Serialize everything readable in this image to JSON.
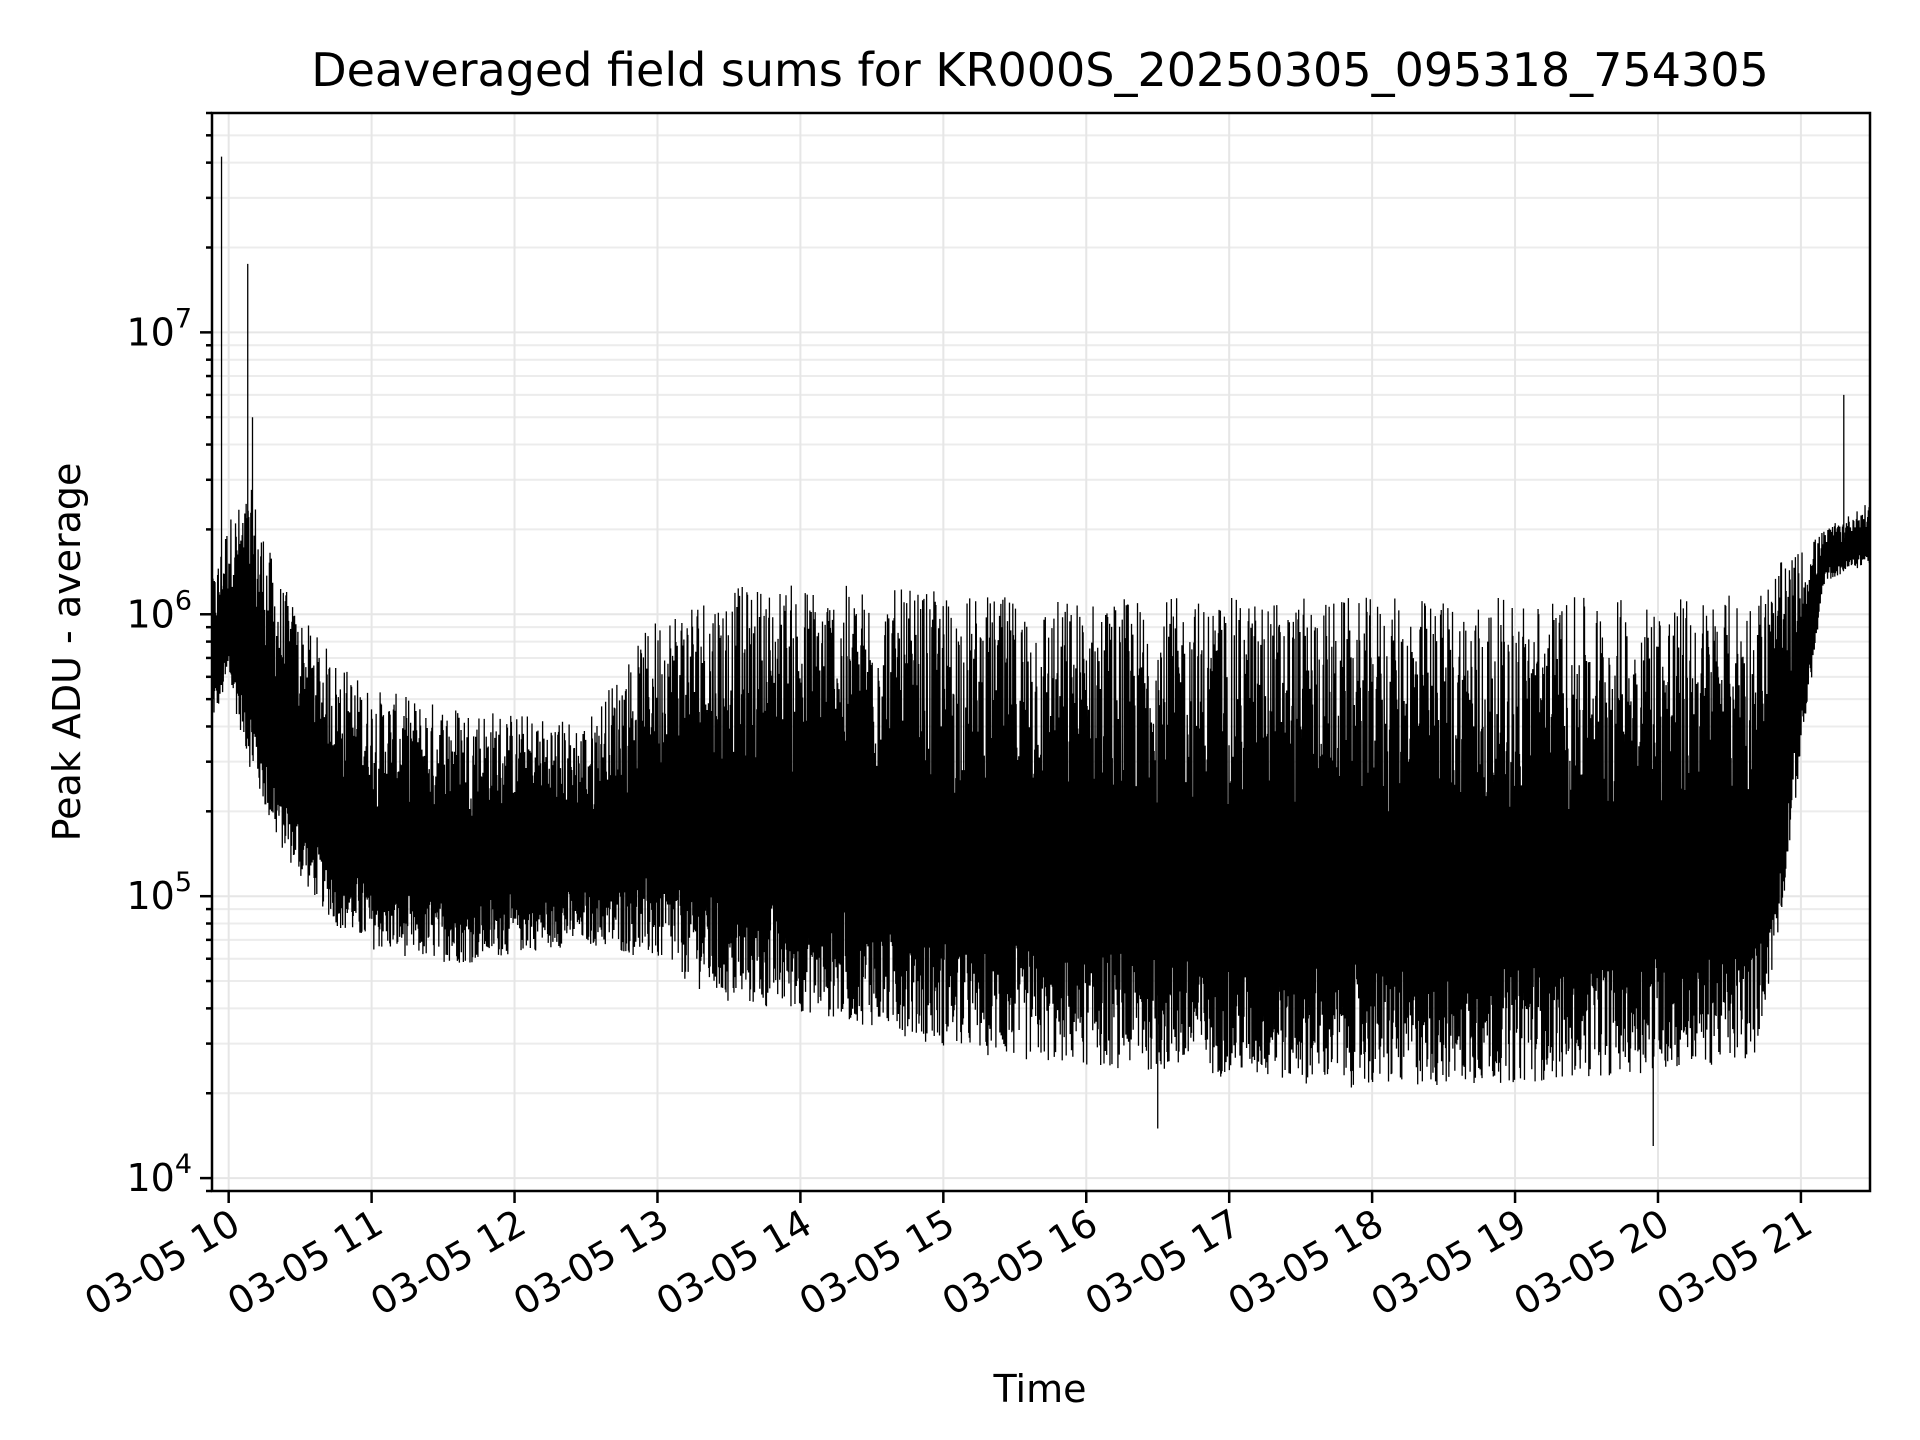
{
  "chart_data": {
    "type": "line",
    "title": "Deaveraged field sums for KR000S_20250305_095318_754305",
    "xlabel": "Time",
    "ylabel": "Peak ADU - average",
    "y_scale": "log",
    "ylim": [
      9000,
      60000000
    ],
    "xlim": [
      "2025-03-05 09:53",
      "2025-03-05 21:29"
    ],
    "grid": true,
    "legend": "none",
    "line_color": "#000000",
    "x_ticks": [
      "03-05 10",
      "03-05 11",
      "03-05 12",
      "03-05 13",
      "03-05 14",
      "03-05 15",
      "03-05 16",
      "03-05 17",
      "03-05 18",
      "03-05 19",
      "03-05 20",
      "03-05 21"
    ],
    "x_tick_times": [
      "2025-03-05 10:00",
      "2025-03-05 11:00",
      "2025-03-05 12:00",
      "2025-03-05 13:00",
      "2025-03-05 14:00",
      "2025-03-05 15:00",
      "2025-03-05 16:00",
      "2025-03-05 17:00",
      "2025-03-05 18:00",
      "2025-03-05 19:00",
      "2025-03-05 20:00",
      "2025-03-05 21:00"
    ],
    "y_ticks": [
      {
        "base": "10",
        "exp": "4",
        "value": 10000
      },
      {
        "base": "10",
        "exp": "5",
        "value": 100000
      },
      {
        "base": "10",
        "exp": "6",
        "value": 1000000
      },
      {
        "base": "10",
        "exp": "7",
        "value": 10000000
      }
    ],
    "series": [
      {
        "envelope": [
          {
            "t": "2025-03-05 09:53",
            "low": 400000,
            "high": 1300000
          },
          {
            "t": "2025-03-05 10:00",
            "low": 550000,
            "high": 2200000
          },
          {
            "t": "2025-03-05 10:10",
            "low": 250000,
            "high": 2800000
          },
          {
            "t": "2025-03-05 10:20",
            "low": 150000,
            "high": 1400000
          },
          {
            "t": "2025-03-05 10:30",
            "low": 110000,
            "high": 1000000
          },
          {
            "t": "2025-03-05 10:45",
            "low": 75000,
            "high": 700000
          },
          {
            "t": "2025-03-05 11:00",
            "low": 62000,
            "high": 550000
          },
          {
            "t": "2025-03-05 11:20",
            "low": 57000,
            "high": 500000
          },
          {
            "t": "2025-03-05 11:40",
            "low": 55000,
            "high": 480000
          },
          {
            "t": "2025-03-05 12:00",
            "low": 60000,
            "high": 450000
          },
          {
            "t": "2025-03-05 12:30",
            "low": 65000,
            "high": 420000
          },
          {
            "t": "2025-03-05 13:00",
            "low": 55000,
            "high": 1000000
          },
          {
            "t": "2025-03-05 13:15",
            "low": 45000,
            "high": 1200000
          },
          {
            "t": "2025-03-05 13:30",
            "low": 38000,
            "high": 1250000
          },
          {
            "t": "2025-03-05 14:00",
            "low": 36000,
            "high": 1300000
          },
          {
            "t": "2025-03-05 14:30",
            "low": 32000,
            "high": 1250000
          },
          {
            "t": "2025-03-05 15:00",
            "low": 27000,
            "high": 1200000
          },
          {
            "t": "2025-03-05 15:30",
            "low": 24000,
            "high": 1150000
          },
          {
            "t": "2025-03-05 16:00",
            "low": 23000,
            "high": 1150000
          },
          {
            "t": "2025-03-05 17:00",
            "low": 21000,
            "high": 1150000
          },
          {
            "t": "2025-03-05 18:00",
            "low": 19000,
            "high": 1150000
          },
          {
            "t": "2025-03-05 19:00",
            "low": 20000,
            "high": 1150000
          },
          {
            "t": "2025-03-05 20:00",
            "low": 22000,
            "high": 1150000
          },
          {
            "t": "2025-03-05 20:40",
            "low": 24000,
            "high": 1200000
          },
          {
            "t": "2025-03-05 20:50",
            "low": 60000,
            "high": 1500000
          },
          {
            "t": "2025-03-05 21:00",
            "low": 300000,
            "high": 1700000
          },
          {
            "t": "2025-03-05 21:10",
            "low": 1300000,
            "high": 2000000
          },
          {
            "t": "2025-03-05 21:29",
            "low": 1500000,
            "high": 2500000
          }
        ],
        "spikes": [
          {
            "t": "2025-03-05 09:57",
            "value": 42000000
          },
          {
            "t": "2025-03-05 10:08",
            "value": 17500000
          },
          {
            "t": "2025-03-05 10:10",
            "value": 5000000
          },
          {
            "t": "2025-03-05 21:18",
            "value": 6000000
          },
          {
            "t": "2025-03-05 16:30",
            "value": 15000
          },
          {
            "t": "2025-03-05 19:58",
            "value": 13000
          }
        ]
      }
    ]
  }
}
